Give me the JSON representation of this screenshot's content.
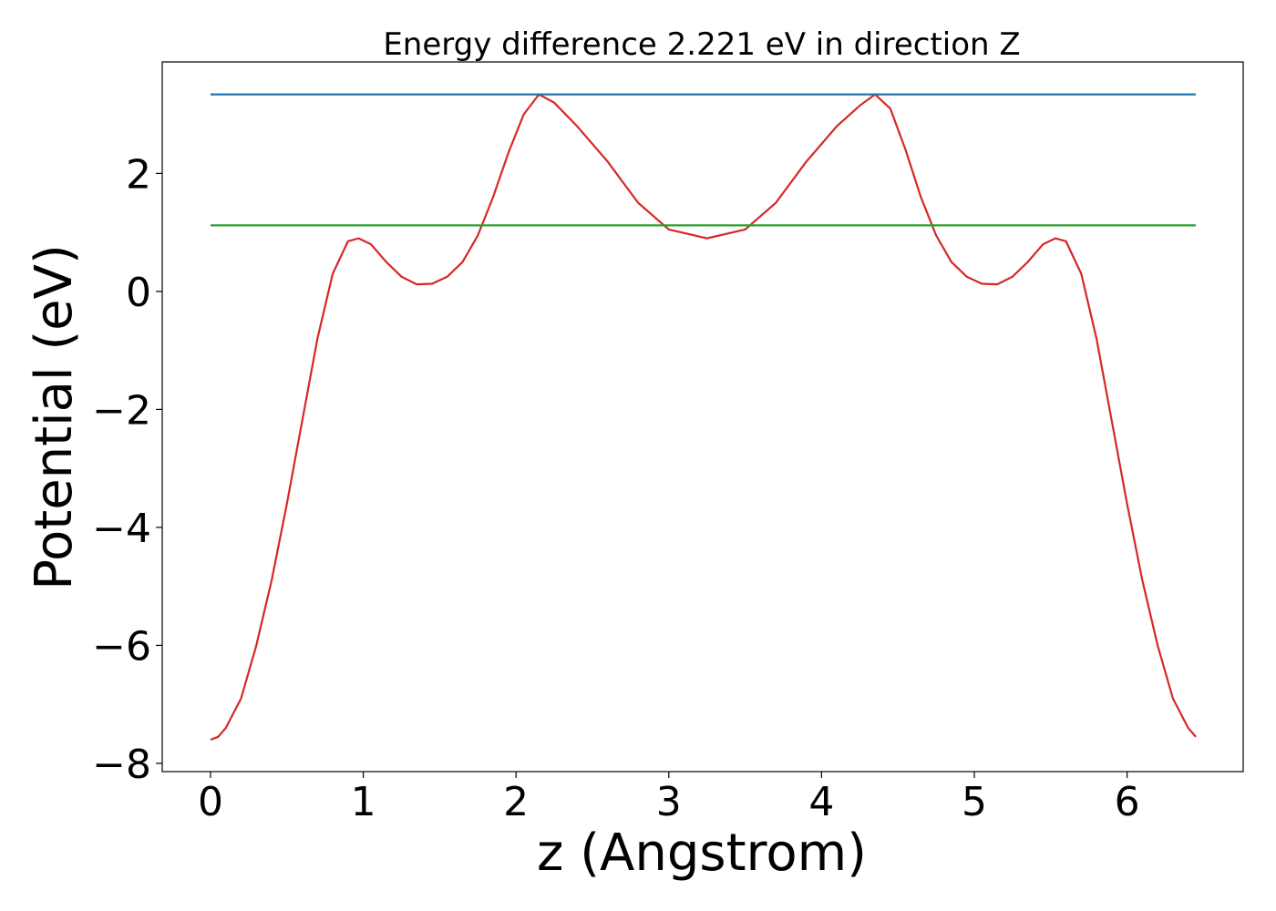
{
  "chart_data": {
    "type": "line",
    "title": "Energy difference 2.221 eV in direction Z",
    "x_label": "z (Angstrom)",
    "y_label": "Potential (eV)",
    "xlim": [
      -0.316,
      6.76
    ],
    "ylim": [
      -8.14,
      3.89
    ],
    "xticks": [
      0,
      1,
      2,
      3,
      4,
      5,
      6
    ],
    "yticks": [
      {
        "value": -8,
        "label": "−8"
      },
      {
        "value": -6,
        "label": "−6"
      },
      {
        "value": -4,
        "label": "−4"
      },
      {
        "value": -2,
        "label": "−2"
      },
      0,
      2
    ],
    "series": [
      {
        "color": "#d62728",
        "x": [
          0,
          0.05,
          0.1,
          0.2,
          0.3,
          0.4,
          0.5,
          0.6,
          0.7,
          0.8,
          0.9,
          0.97,
          1.05,
          1.15,
          1.25,
          1.35,
          1.45,
          1.55,
          1.65,
          1.75,
          1.85,
          1.95,
          2.05,
          2.15,
          2.25,
          2.4,
          2.6,
          2.8,
          3.0,
          3.25,
          3.5,
          3.7,
          3.9,
          4.1,
          4.25,
          4.35,
          4.45,
          4.55,
          4.65,
          4.75,
          4.85,
          4.95,
          5.05,
          5.15,
          5.25,
          5.35,
          5.45,
          5.53,
          5.6,
          5.7,
          5.8,
          5.9,
          6.0,
          6.1,
          6.2,
          6.3,
          6.4,
          6.45
        ],
        "values": [
          -7.6,
          -7.55,
          -7.4,
          -6.9,
          -6.0,
          -4.9,
          -3.6,
          -2.2,
          -0.8,
          0.3,
          0.85,
          0.9,
          0.8,
          0.5,
          0.25,
          0.12,
          0.13,
          0.25,
          0.5,
          0.95,
          1.6,
          2.35,
          3.0,
          3.34,
          3.2,
          2.8,
          2.2,
          1.5,
          1.05,
          0.9,
          1.05,
          1.5,
          2.2,
          2.8,
          3.15,
          3.34,
          3.1,
          2.4,
          1.6,
          0.95,
          0.5,
          0.25,
          0.13,
          0.12,
          0.25,
          0.5,
          0.8,
          0.9,
          0.85,
          0.3,
          -0.8,
          -2.2,
          -3.6,
          -4.9,
          -6.0,
          -6.9,
          -7.4,
          -7.55
        ]
      },
      {
        "color": "#1f77b4",
        "x": [
          0,
          6.45
        ],
        "values": [
          3.34,
          3.34
        ]
      },
      {
        "color": "#2ca02c",
        "x": [
          0,
          6.45
        ],
        "values": [
          1.12,
          1.12
        ]
      }
    ]
  }
}
